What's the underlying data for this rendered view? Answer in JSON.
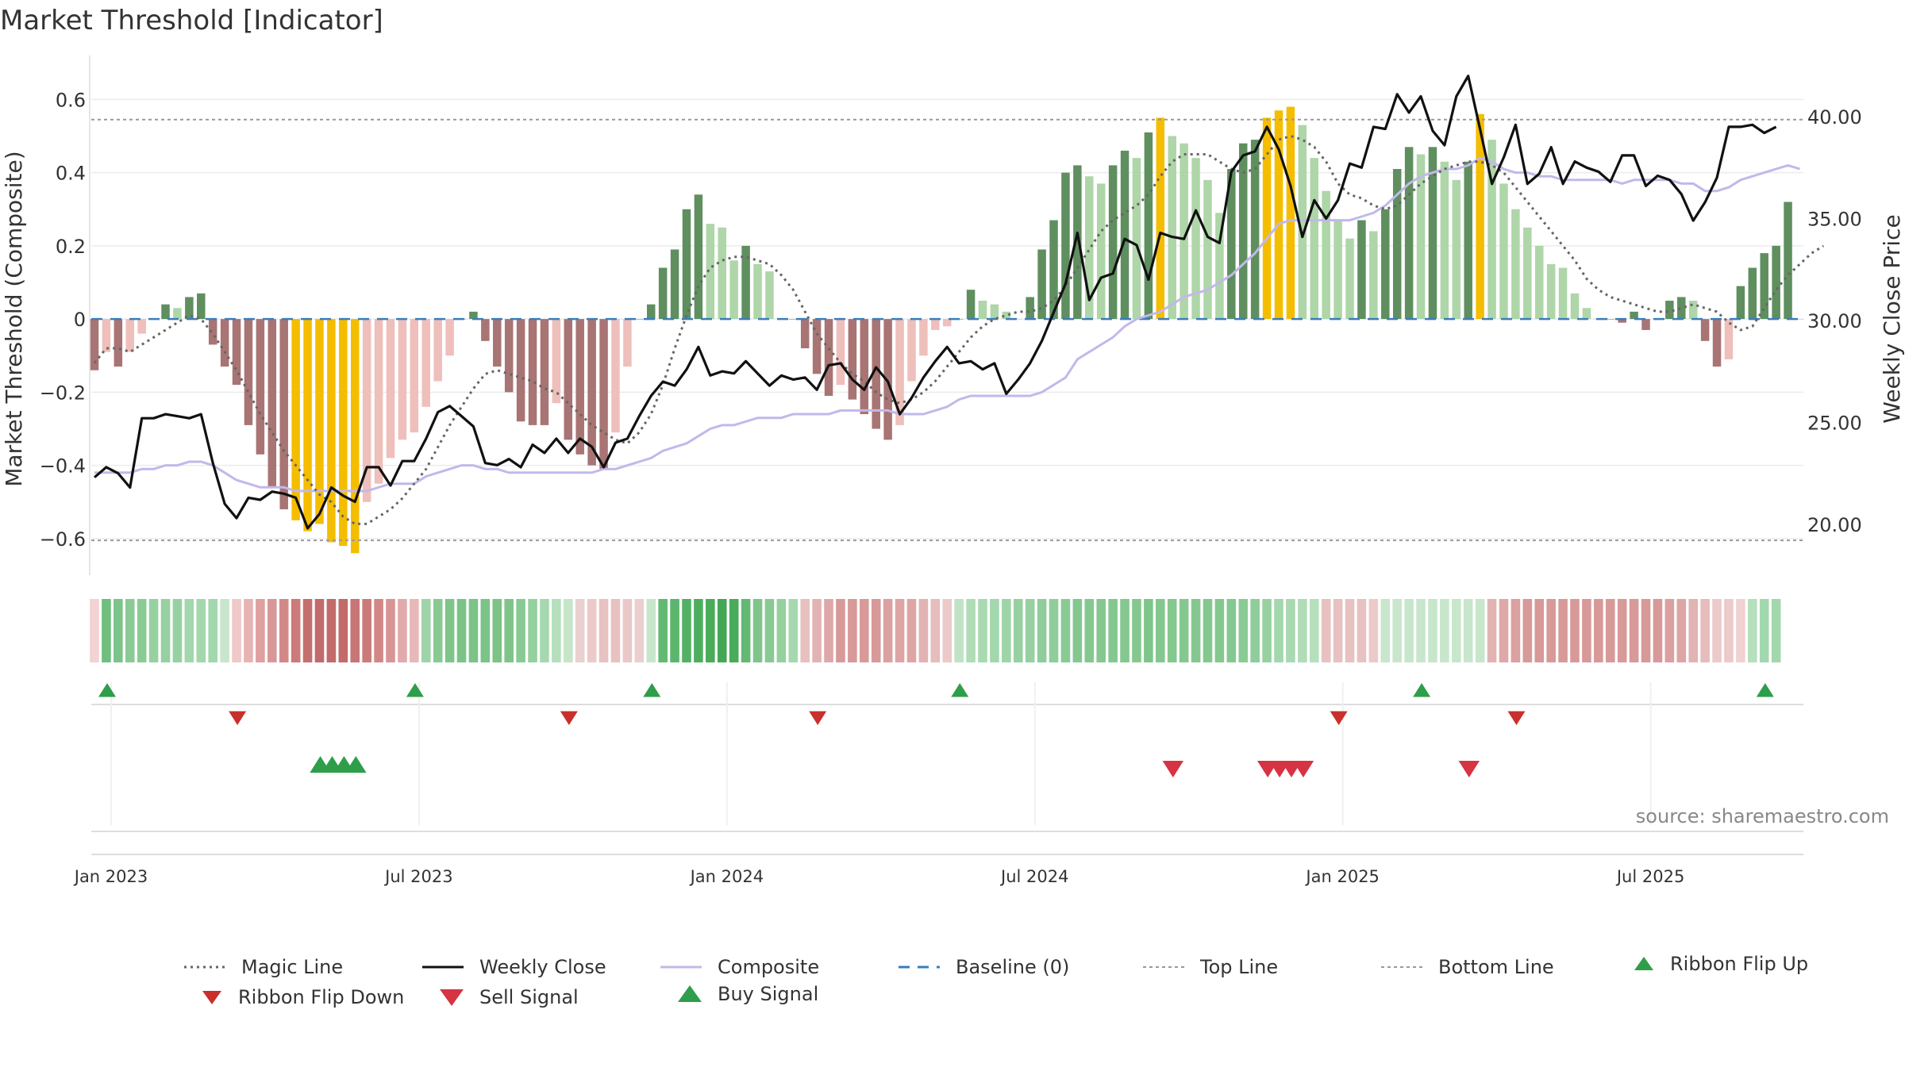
{
  "chart_data": {
    "type": "bar",
    "title": "Market Threshold [Indicator]",
    "ylabel_left": "Market Threshold (Composite)",
    "ylabel_right": "Weekly Close Price",
    "ylim_left": [
      -0.7,
      0.72
    ],
    "ylim_right": [
      17.5,
      43.0
    ],
    "left_ticks": [
      0.6,
      0.4,
      0.2,
      0,
      -0.2,
      -0.4,
      -0.6
    ],
    "left_tick_labels": [
      "0.6",
      "0.4",
      "0.2",
      "0",
      "−0.2",
      "−0.4",
      "−0.6"
    ],
    "right_ticks": [
      40,
      35,
      30,
      25,
      20
    ],
    "right_tick_labels": [
      "40.00",
      "35.00",
      "30.00",
      "25.00",
      "20.00"
    ],
    "top_line": 0.545,
    "bottom_line": -0.605,
    "x_ticks": [
      {
        "label": "Jan 2023",
        "week": 0
      },
      {
        "label": "Jul 2023",
        "week": 26
      },
      {
        "label": "Jan 2024",
        "week": 52
      },
      {
        "label": "Jul 2024",
        "week": 78
      },
      {
        "label": "Jan 2025",
        "week": 104
      },
      {
        "label": "Jul 2025",
        "week": 130
      }
    ],
    "num_weeks": 145,
    "composite_bars": [
      -0.14,
      -0.09,
      -0.13,
      -0.09,
      -0.04,
      0.0,
      0.04,
      0.03,
      0.06,
      0.07,
      -0.07,
      -0.13,
      -0.18,
      -0.29,
      -0.37,
      -0.46,
      -0.52,
      -0.55,
      -0.58,
      -0.56,
      -0.61,
      -0.62,
      -0.64,
      -0.5,
      -0.45,
      -0.38,
      -0.33,
      -0.31,
      -0.24,
      -0.17,
      -0.1,
      0.0,
      0.02,
      -0.06,
      -0.13,
      -0.2,
      -0.28,
      -0.29,
      -0.29,
      -0.23,
      -0.33,
      -0.37,
      -0.4,
      -0.41,
      -0.31,
      -0.13,
      0.0,
      0.04,
      0.14,
      0.19,
      0.3,
      0.34,
      0.26,
      0.25,
      0.16,
      0.2,
      0.15,
      0.13,
      0.0,
      0.0,
      -0.08,
      -0.15,
      -0.21,
      -0.18,
      -0.22,
      -0.26,
      -0.3,
      -0.33,
      -0.29,
      -0.17,
      -0.1,
      -0.03,
      -0.02,
      0.0,
      0.08,
      0.05,
      0.04,
      0.02,
      0.0,
      0.06,
      0.19,
      0.27,
      0.4,
      0.42,
      0.39,
      0.37,
      0.42,
      0.46,
      0.44,
      0.51,
      0.55,
      0.5,
      0.48,
      0.44,
      0.38,
      0.29,
      0.41,
      0.48,
      0.49,
      0.55,
      0.57,
      0.58,
      0.53,
      0.44,
      0.35,
      0.27,
      0.22,
      0.27,
      0.24,
      0.3,
      0.41,
      0.47,
      0.45,
      0.47,
      0.43,
      0.38,
      0.43,
      0.56,
      0.49,
      0.37,
      0.3,
      0.25,
      0.2,
      0.15,
      0.14,
      0.07,
      0.03,
      0.0,
      0.0,
      -0.01,
      0.02,
      -0.03,
      0.0,
      0.05,
      0.06,
      0.05,
      -0.06,
      -0.13,
      -0.11,
      0.09,
      0.14,
      0.18,
      0.2,
      0.32,
      0.0
    ],
    "weekly_close": [
      22.3,
      22.8,
      22.5,
      21.8,
      25.2,
      25.2,
      25.4,
      25.3,
      25.2,
      25.4,
      23.0,
      21.0,
      20.3,
      21.3,
      21.2,
      21.6,
      21.5,
      21.3,
      19.8,
      20.5,
      21.8,
      21.4,
      21.1,
      22.8,
      22.8,
      21.9,
      23.1,
      23.1,
      24.2,
      25.5,
      25.8,
      25.3,
      24.8,
      23.0,
      22.9,
      23.2,
      22.8,
      23.9,
      23.5,
      24.2,
      23.5,
      24.2,
      23.8,
      22.8,
      24.0,
      24.2,
      25.3,
      26.3,
      27.0,
      26.8,
      27.6,
      28.7,
      27.3,
      27.5,
      27.4,
      28.0,
      27.4,
      26.8,
      27.3,
      27.1,
      27.2,
      26.6,
      27.8,
      27.9,
      27.1,
      26.6,
      27.7,
      27.0,
      25.4,
      26.2,
      27.2,
      28.0,
      28.7,
      27.9,
      28.0,
      27.6,
      27.9,
      26.4,
      27.1,
      27.9,
      29.0,
      30.4,
      31.8,
      34.3,
      31.0,
      32.1,
      32.3,
      34.0,
      33.7,
      32.0,
      34.3,
      34.1,
      34.0,
      35.4,
      34.1,
      33.8,
      37.3,
      38.1,
      38.3,
      39.5,
      38.4,
      36.6,
      34.1,
      35.9,
      35.0,
      35.9,
      37.7,
      37.5,
      39.5,
      39.4,
      41.1,
      40.2,
      41.0,
      39.3,
      38.6,
      41.0,
      42.0,
      39.4,
      36.7,
      38.0,
      39.6,
      36.7,
      37.2,
      38.5,
      36.7,
      37.8,
      37.5,
      37.3,
      36.8,
      38.1,
      38.1,
      36.6,
      37.1,
      36.9,
      36.2,
      34.9,
      35.8,
      37.0,
      39.5,
      39.5,
      39.6,
      39.2,
      39.5
    ],
    "composite_line": [
      -0.42,
      -0.42,
      -0.42,
      -0.42,
      -0.41,
      -0.41,
      -0.4,
      -0.4,
      -0.39,
      -0.39,
      -0.4,
      -0.42,
      -0.44,
      -0.45,
      -0.46,
      -0.46,
      -0.46,
      -0.47,
      -0.47,
      -0.47,
      -0.47,
      -0.47,
      -0.47,
      -0.47,
      -0.46,
      -0.45,
      -0.45,
      -0.45,
      -0.43,
      -0.42,
      -0.41,
      -0.4,
      -0.4,
      -0.41,
      -0.41,
      -0.42,
      -0.42,
      -0.42,
      -0.42,
      -0.42,
      -0.42,
      -0.42,
      -0.42,
      -0.41,
      -0.41,
      -0.4,
      -0.39,
      -0.38,
      -0.36,
      -0.35,
      -0.34,
      -0.32,
      -0.3,
      -0.29,
      -0.29,
      -0.28,
      -0.27,
      -0.27,
      -0.27,
      -0.26,
      -0.26,
      -0.26,
      -0.26,
      -0.25,
      -0.25,
      -0.25,
      -0.25,
      -0.25,
      -0.26,
      -0.26,
      -0.26,
      -0.25,
      -0.24,
      -0.22,
      -0.21,
      -0.21,
      -0.21,
      -0.21,
      -0.21,
      -0.21,
      -0.2,
      -0.18,
      -0.16,
      -0.11,
      -0.09,
      -0.07,
      -0.05,
      -0.02,
      0.0,
      0.01,
      0.02,
      0.04,
      0.06,
      0.07,
      0.08,
      0.1,
      0.12,
      0.15,
      0.18,
      0.22,
      0.26,
      0.27,
      0.27,
      0.27,
      0.27,
      0.27,
      0.27,
      0.28,
      0.29,
      0.31,
      0.34,
      0.37,
      0.39,
      0.4,
      0.41,
      0.41,
      0.42,
      0.44,
      0.43,
      0.41,
      0.4,
      0.4,
      0.39,
      0.39,
      0.38,
      0.38,
      0.38,
      0.38,
      0.38,
      0.37,
      0.38,
      0.38,
      0.38,
      0.38,
      0.37,
      0.37,
      0.35,
      0.35,
      0.36,
      0.38,
      0.39,
      0.4,
      0.41,
      0.42,
      0.41
    ],
    "magic_line": [
      -0.12,
      -0.08,
      -0.08,
      -0.09,
      -0.07,
      -0.05,
      -0.03,
      -0.01,
      0.01,
      0.0,
      -0.04,
      -0.09,
      -0.14,
      -0.2,
      -0.26,
      -0.31,
      -0.36,
      -0.4,
      -0.44,
      -0.48,
      -0.5,
      -0.54,
      -0.56,
      -0.56,
      -0.54,
      -0.52,
      -0.49,
      -0.45,
      -0.41,
      -0.35,
      -0.29,
      -0.24,
      -0.19,
      -0.15,
      -0.14,
      -0.15,
      -0.16,
      -0.17,
      -0.19,
      -0.2,
      -0.23,
      -0.26,
      -0.29,
      -0.31,
      -0.33,
      -0.34,
      -0.31,
      -0.26,
      -0.18,
      -0.08,
      0.01,
      0.09,
      0.14,
      0.16,
      0.17,
      0.17,
      0.16,
      0.15,
      0.12,
      0.08,
      0.02,
      -0.04,
      -0.08,
      -0.12,
      -0.15,
      -0.17,
      -0.2,
      -0.22,
      -0.23,
      -0.22,
      -0.2,
      -0.17,
      -0.13,
      -0.09,
      -0.05,
      -0.02,
      0.0,
      0.01,
      0.02,
      0.02,
      0.03,
      0.05,
      0.09,
      0.14,
      0.19,
      0.24,
      0.27,
      0.29,
      0.31,
      0.34,
      0.39,
      0.43,
      0.45,
      0.45,
      0.45,
      0.43,
      0.41,
      0.4,
      0.41,
      0.45,
      0.49,
      0.5,
      0.49,
      0.47,
      0.43,
      0.37,
      0.34,
      0.33,
      0.31,
      0.3,
      0.31,
      0.34,
      0.37,
      0.39,
      0.41,
      0.42,
      0.43,
      0.43,
      0.42,
      0.4,
      0.36,
      0.32,
      0.28,
      0.24,
      0.2,
      0.16,
      0.11,
      0.08,
      0.06,
      0.05,
      0.04,
      0.03,
      0.02,
      0.02,
      0.03,
      0.04,
      0.03,
      0.02,
      -0.01,
      -0.03,
      -0.02,
      0.03,
      0.08,
      0.12,
      0.15,
      0.18,
      0.2
    ],
    "ribbon_colors": [
      "#f2d2d2",
      "#6fbf7e",
      "#7cc489",
      "#8acb95",
      "#8acb95",
      "#97d1a1",
      "#97d1a1",
      "#97d1a1",
      "#a3d7ad",
      "#a3d7ad",
      "#a3d7ad",
      "#c8e6cc",
      "#f0c8c8",
      "#e8b3b3",
      "#dfa0a0",
      "#d99898",
      "#d38888",
      "#cc7a7a",
      "#c56f6f",
      "#c36a6a",
      "#c36a6a",
      "#c36a6a",
      "#c87575",
      "#cc7b7b",
      "#d28787",
      "#d89595",
      "#e2abab",
      "#e8b8b8",
      "#9fd4a8",
      "#89ca94",
      "#7fc58a",
      "#7bc387",
      "#7bc387",
      "#7bc387",
      "#7bc387",
      "#7fc58a",
      "#89ca94",
      "#95d09f",
      "#a6d8af",
      "#b6dfbc",
      "#c5e6c9",
      "#ead0d0",
      "#eccaca",
      "#e8c1c1",
      "#e8c1c1",
      "#eac8c8",
      "#eccece",
      "#c8e6cc",
      "#63b972",
      "#5cb56c",
      "#53b064",
      "#4eae60",
      "#4aab5b",
      "#43a756",
      "#4aab5b",
      "#63b972",
      "#7fc58a",
      "#89ca94",
      "#95d09f",
      "#a6d8af",
      "#e7c0c0",
      "#e2b3b3",
      "#dea8a8",
      "#d89999",
      "#d89999",
      "#d89999",
      "#d89999",
      "#dba0a0",
      "#dea5a5",
      "#dea5a5",
      "#e2b3b3",
      "#e6bcbc",
      "#eccaca",
      "#bfe3c4",
      "#b0dcb7",
      "#a9d9b1",
      "#a3d7ad",
      "#9fd4a8",
      "#97d1a1",
      "#97d1a1",
      "#8fcd9a",
      "#8fcd9a",
      "#8acb95",
      "#84c88f",
      "#84c88f",
      "#84c88f",
      "#84c88f",
      "#84c88f",
      "#84c88f",
      "#7fc58a",
      "#84c88f",
      "#84c88f",
      "#84c88f",
      "#84c88f",
      "#84c88f",
      "#84c88f",
      "#84c88f",
      "#8acb95",
      "#8fcd9a",
      "#97d1a1",
      "#a3d7ad",
      "#a9d9b1",
      "#b0dcb7",
      "#b6dfbc",
      "#e8c1c1",
      "#e8c1c1",
      "#e8c1c1",
      "#e8c1c1",
      "#eccaca",
      "#c8e6cc",
      "#c8e6cc",
      "#c8e6cc",
      "#c8e6cc",
      "#c8e6cc",
      "#c8e6cc",
      "#c8e6cc",
      "#c8e6cc",
      "#c8e6cc",
      "#e2b3b3",
      "#dea8a8",
      "#dba0a0",
      "#d89999",
      "#d89999",
      "#d89999",
      "#d89999",
      "#d89999",
      "#d89999",
      "#d89999",
      "#d89999",
      "#d89999",
      "#d89999",
      "#d89999",
      "#d89999",
      "#dba0a0",
      "#dea5a5",
      "#e2b3b3",
      "#e6bcbc",
      "#eccaca",
      "#eccaca",
      "#f0d2d2",
      "#b6dfbc",
      "#a3d7ad",
      "#a3d7ad"
    ],
    "ribbon_flip_up_weeks": [
      0,
      26,
      46,
      72,
      111,
      140
    ],
    "ribbon_flip_down_weeks": [
      11,
      39,
      60,
      104,
      119
    ],
    "buy_signal_weeks": [
      18,
      19,
      20,
      21
    ],
    "sell_signal_weeks": [
      90,
      98,
      99,
      100,
      101,
      115
    ],
    "colors": {
      "strong_pos": "#5f8f5f",
      "weak_pos": "#aed6a8",
      "strong_neg": "#a87474",
      "weak_neg": "#eebfbb",
      "extreme": "#f5bd00",
      "weekly_close": "#111111",
      "composite": "#c2b8ea",
      "magic_line": "#666666",
      "baseline": "#3a7dbd",
      "threshold_lines": "#999999",
      "buy": "#2e9e4a",
      "sell": "#d63343",
      "flip_down": "#c9302c"
    }
  },
  "legend": [
    {
      "label": "Magic Line",
      "icon": "dotted-line"
    },
    {
      "label": "Weekly Close",
      "icon": "solid-line"
    },
    {
      "label": "Composite",
      "icon": "light-line"
    },
    {
      "label": "Baseline (0)",
      "icon": "dashed-line"
    },
    {
      "label": "Top Line",
      "icon": "dotted-grey"
    },
    {
      "label": "Bottom Line",
      "icon": "dotted-grey"
    },
    {
      "label": "Ribbon Flip Up",
      "icon": "triangle-up"
    },
    {
      "label": "Ribbon Flip Down",
      "icon": "triangle-down"
    },
    {
      "label": "Sell Signal",
      "icon": "triangle-down-large"
    },
    {
      "label": "Buy Signal",
      "icon": "triangle-up-large"
    }
  ],
  "source_note": "source: sharemaestro.com"
}
